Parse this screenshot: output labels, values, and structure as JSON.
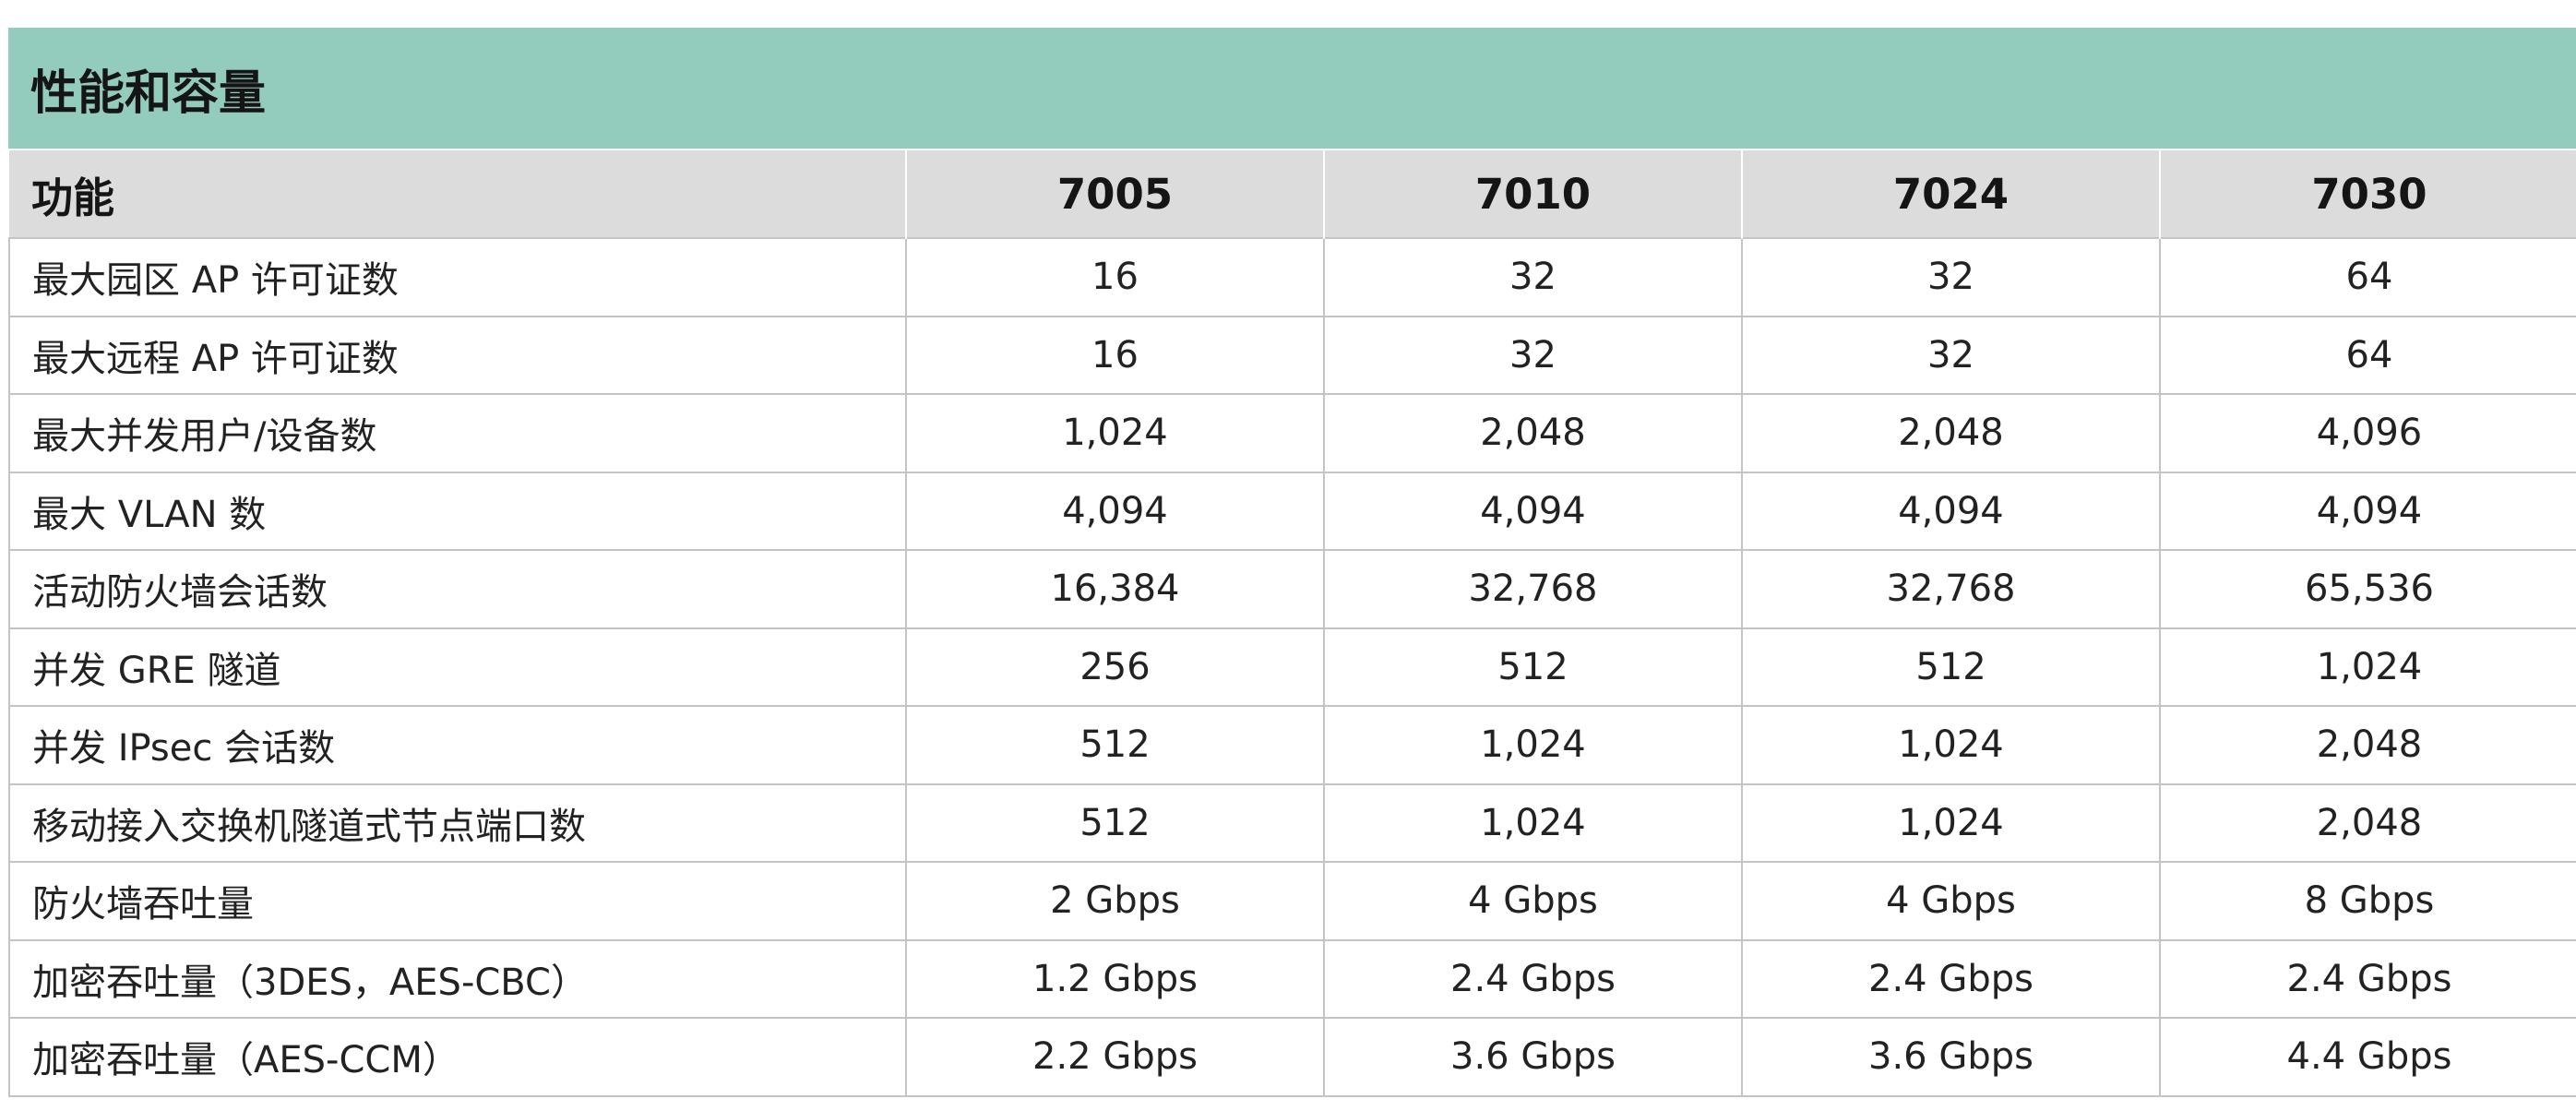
{
  "title": "性能和容量",
  "table": {
    "header": [
      "功能",
      "7005",
      "7010",
      "7024",
      "7030"
    ],
    "rows": [
      [
        "最大园区 AP 许可证数",
        "16",
        "32",
        "32",
        "64"
      ],
      [
        "最大远程 AP 许可证数",
        "16",
        "32",
        "32",
        "64"
      ],
      [
        "最大并发用户/设备数",
        "1,024",
        "2,048",
        "2,048",
        "4,096"
      ],
      [
        "最大 VLAN 数",
        "4,094",
        "4,094",
        "4,094",
        "4,094"
      ],
      [
        "活动防火墙会话数",
        "16,384",
        "32,768",
        "32,768",
        "65,536"
      ],
      [
        "并发 GRE 隧道",
        "256",
        "512",
        "512",
        "1,024"
      ],
      [
        "并发 IPsec 会话数",
        "512",
        "1,024",
        "1,024",
        "2,048"
      ],
      [
        "移动接入交换机隧道式节点端口数",
        "512",
        "1,024",
        "1,024",
        "2,048"
      ],
      [
        "防火墙吞吐量",
        "2 Gbps",
        "4 Gbps",
        "4 Gbps",
        "8 Gbps"
      ],
      [
        "加密吞吐量（3DES，AES-CBC）",
        "1.2 Gbps",
        "2.4 Gbps",
        "2.4 Gbps",
        "2.4 Gbps"
      ],
      [
        "加密吞吐量（AES-CCM）",
        "2.2 Gbps",
        "3.6 Gbps",
        "3.6 Gbps",
        "4.4 Gbps"
      ]
    ]
  },
  "colors": {
    "title_background": "#93cbbd",
    "header_background": "#dcdcdc",
    "grid_lines": "#c4c4c4"
  }
}
